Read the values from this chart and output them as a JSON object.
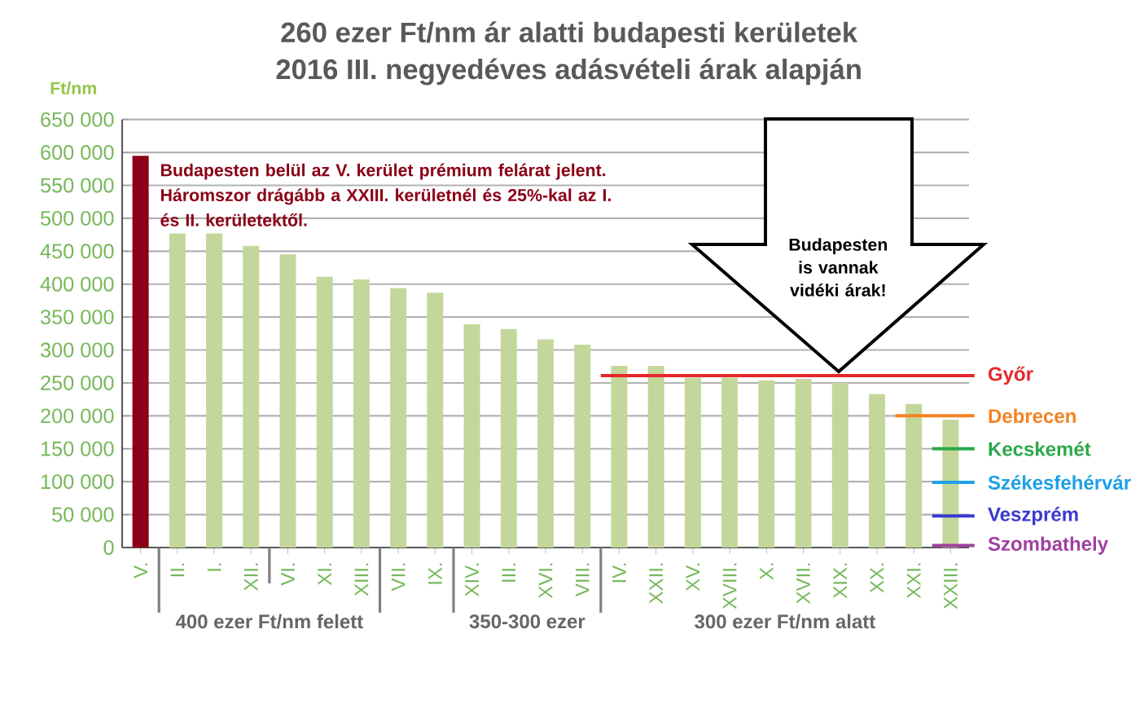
{
  "chart_data": {
    "type": "bar",
    "title": "260 ezer Ft/nm ár alatti budapesti kerületek",
    "subtitle": "2016 III. negyedéves adásvételi árak alapján",
    "ylabel": "Ft/nm",
    "categories": [
      "V.",
      "II.",
      "I.",
      "XII.",
      "VI.",
      "XI.",
      "XIII.",
      "VII.",
      "IX.",
      "XIV.",
      "III.",
      "XVI.",
      "VIII.",
      "IV.",
      "XXII.",
      "XV.",
      "XVIII.",
      "X.",
      "XVII.",
      "XIX.",
      "XX.",
      "XXI.",
      "XXIII."
    ],
    "values": [
      595000,
      477000,
      477000,
      458000,
      445000,
      411000,
      407000,
      394000,
      387000,
      339000,
      332000,
      316000,
      308000,
      276000,
      276000,
      258000,
      258000,
      254000,
      256000,
      250000,
      233000,
      218000,
      194000
    ],
    "colors": [
      "#8b0016",
      "#c4d79b",
      "#c4d79b",
      "#c4d79b",
      "#c4d79b",
      "#c4d79b",
      "#c4d79b",
      "#c4d79b",
      "#c4d79b",
      "#c4d79b",
      "#c4d79b",
      "#c4d79b",
      "#c4d79b",
      "#c4d79b",
      "#c4d79b",
      "#c4d79b",
      "#c4d79b",
      "#c4d79b",
      "#c4d79b",
      "#c4d79b",
      "#c4d79b",
      "#c4d79b",
      "#c4d79b"
    ],
    "ylim": [
      0,
      650000
    ],
    "yticks": [
      0,
      {
        "value": 50000,
        "label": "50 000"
      },
      {
        "value": 100000,
        "label": "100 000"
      },
      {
        "value": 150000,
        "label": "150 000"
      },
      {
        "value": 200000,
        "label": "200 000"
      },
      {
        "value": 250000,
        "label": "250 000"
      },
      {
        "value": 300000,
        "label": "300 000"
      },
      {
        "value": 350000,
        "label": "350 000"
      },
      {
        "value": 400000,
        "label": "400 000"
      },
      {
        "value": 450000,
        "label": "450 000"
      },
      {
        "value": 500000,
        "label": "500 000"
      },
      {
        "value": 550000,
        "label": "550 000"
      },
      {
        "value": 600000,
        "label": "600 000"
      },
      {
        "value": 650000,
        "label": "650 000"
      }
    ],
    "grid": "y",
    "ref_lines": [
      {
        "axis": "y",
        "value": 261000,
        "label": "Győr",
        "color": "#e8262a"
      },
      {
        "axis": "y",
        "value": 200000,
        "label": "Debrecen",
        "color": "#f58220"
      },
      {
        "axis": "y",
        "value": 150000,
        "label": "Kecskemét",
        "color": "#2ca84a"
      },
      {
        "axis": "y",
        "value": 99000,
        "label": "Székesfehérvár",
        "color": "#1ea0e6"
      },
      {
        "axis": "y",
        "value": 48000,
        "label": "Veszprém",
        "color": "#3a3ad0"
      },
      {
        "axis": "y",
        "value": 3000,
        "label": "Szombathely",
        "color": "#a040a0"
      }
    ],
    "annotations": [
      "Budapesten belül az V. kerület prémium felárat jelent. Háromszor drágább a XXIII. kerületnél  és 25%-kal az I. és II. kerületektől.",
      "Budapesten is vannak vidéki árak!",
      "400 ezer Ft/nm felett",
      "350-300 ezer",
      "300 ezer Ft/nm alatt"
    ]
  }
}
